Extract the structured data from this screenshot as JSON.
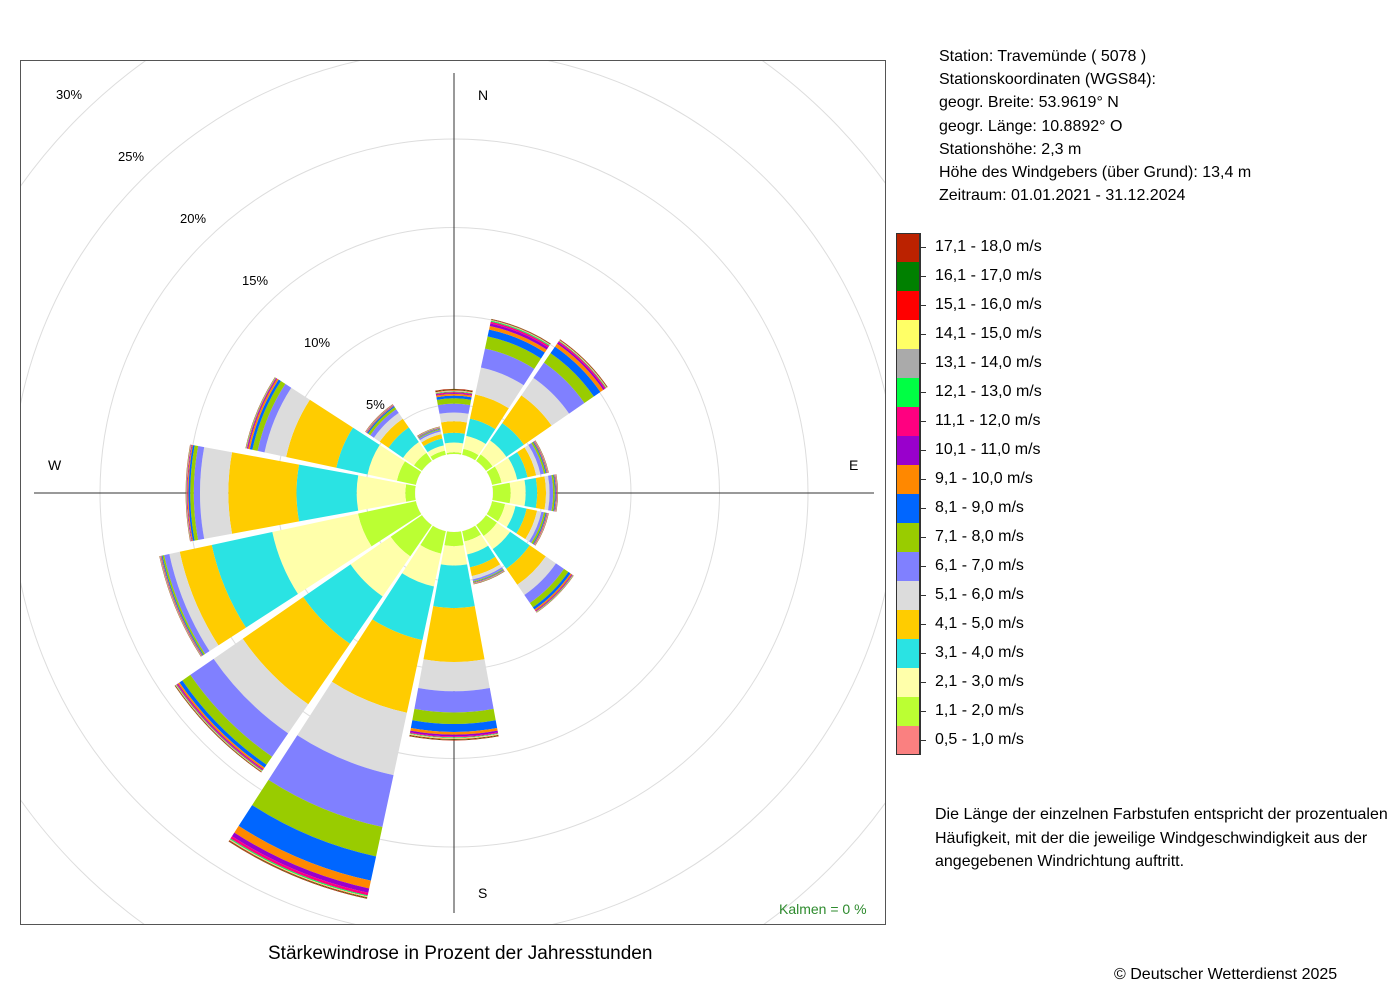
{
  "chart_data": {
    "type": "wind-rose",
    "title": "Stärkewindrose in Prozent der Jahresstunden",
    "directions": [
      "N",
      "NNE",
      "NE",
      "ENE",
      "E",
      "ESE",
      "SE",
      "SSE",
      "S",
      "SSW",
      "SW",
      "WSW",
      "W",
      "WNW",
      "NW",
      "NNW"
    ],
    "direction_labels": [
      "N",
      "E",
      "S",
      "W"
    ],
    "ring_labels": [
      "5%",
      "10%",
      "15%",
      "20%",
      "25%",
      "30%"
    ],
    "ring_values": [
      5,
      10,
      15,
      20,
      25,
      30
    ],
    "rlim": [
      0,
      30
    ],
    "calm_label": "Kalmen  =  0 %",
    "speed_classes": [
      {
        "label": "0,5 - 1,0 m/s",
        "color": "#fa8080"
      },
      {
        "label": "1,1 - 2,0 m/s",
        "color": "#bbff33"
      },
      {
        "label": "2,1 - 3,0 m/s",
        "color": "#ffffaa"
      },
      {
        "label": "3,1 - 4,0 m/s",
        "color": "#2ae3e3"
      },
      {
        "label": "4,1 - 5,0 m/s",
        "color": "#ffcc00"
      },
      {
        "label": "5,1 - 6,0 m/s",
        "color": "#dcdcdc"
      },
      {
        "label": "6,1 - 7,0 m/s",
        "color": "#8080ff"
      },
      {
        "label": "7,1 - 8,0 m/s",
        "color": "#99cc00"
      },
      {
        "label": "8,1 - 9,0 m/s",
        "color": "#0066ff"
      },
      {
        "label": "9,1 - 10,0 m/s",
        "color": "#ff8800"
      },
      {
        "label": "10,1 - 11,0 m/s",
        "color": "#9900cc"
      },
      {
        "label": "11,1 - 12,0 m/s",
        "color": "#ff0080"
      },
      {
        "label": "12,1 - 13,0 m/s",
        "color": "#00ff44"
      },
      {
        "label": "13,1 - 14,0 m/s",
        "color": "#aaaaaa"
      },
      {
        "label": "14,1 - 15,0 m/s",
        "color": "#ffff66"
      },
      {
        "label": "15,1 - 16,0 m/s",
        "color": "#ff0000"
      },
      {
        "label": "16,1 - 17,0 m/s",
        "color": "#008000"
      },
      {
        "label": "17,1 - 18,0 m/s",
        "color": "#bb2200"
      }
    ],
    "cumulative_percent": {
      "N": [
        2.2,
        2.3,
        2.85,
        3.4,
        4.05,
        4.55,
        5.05,
        5.35,
        5.5,
        5.6,
        5.65,
        5.7,
        5.73,
        5.76,
        5.79,
        5.82,
        5.85,
        5.88
      ],
      "NNE": [
        2.2,
        2.55,
        3.3,
        4.3,
        5.7,
        7.25,
        8.35,
        9.05,
        9.45,
        9.65,
        9.8,
        9.9,
        9.95,
        9.98,
        10.0,
        10.02,
        10.04,
        10.06
      ],
      "NE": [
        2.2,
        2.65,
        3.6,
        4.8,
        6.7,
        7.9,
        8.95,
        9.6,
        10.05,
        10.25,
        10.35,
        10.42,
        10.45,
        10.47,
        10.49,
        10.51,
        10.53,
        10.55
      ],
      "ENE": [
        2.2,
        2.75,
        3.65,
        4.25,
        4.75,
        5.0,
        5.2,
        5.3,
        5.35,
        5.38,
        5.4,
        5.42,
        5.43,
        5.44,
        5.45,
        5.46,
        5.47,
        5.48
      ],
      "E": [
        2.2,
        3.2,
        4.05,
        4.7,
        5.2,
        5.4,
        5.6,
        5.7,
        5.75,
        5.78,
        5.8,
        5.82,
        5.83,
        5.84,
        5.85,
        5.86,
        5.87,
        5.88
      ],
      "ESE": [
        2.2,
        2.95,
        3.55,
        4.2,
        4.8,
        5.05,
        5.2,
        5.3,
        5.35,
        5.38,
        5.4,
        5.42,
        5.43,
        5.44,
        5.45,
        5.46,
        5.47,
        5.48
      ],
      "SE": [
        2.2,
        2.95,
        3.85,
        5.2,
        6.3,
        7.0,
        7.55,
        7.85,
        8.0,
        8.08,
        8.12,
        8.15,
        8.17,
        8.18,
        8.19,
        8.2,
        8.21,
        8.22
      ],
      "SSE": [
        2.2,
        2.8,
        3.55,
        4.3,
        4.8,
        5.0,
        5.1,
        5.15,
        5.18,
        5.2,
        5.21,
        5.22,
        5.23,
        5.24,
        5.25,
        5.26,
        5.27,
        5.28
      ],
      "S": [
        2.2,
        3.0,
        4.1,
        6.5,
        9.55,
        11.2,
        12.4,
        13.05,
        13.5,
        13.65,
        13.75,
        13.8,
        13.83,
        13.86,
        13.89,
        13.92,
        13.95,
        13.98
      ],
      "SSW": [
        2.2,
        3.5,
        5.4,
        8.5,
        12.7,
        16.3,
        19.3,
        21.0,
        22.4,
        22.85,
        23.1,
        23.25,
        23.3,
        23.33,
        23.36,
        23.39,
        23.42,
        23.45
      ],
      "SW": [
        2.2,
        4.35,
        7.1,
        10.35,
        14.5,
        16.5,
        18.1,
        18.65,
        18.85,
        18.95,
        19.0,
        19.05,
        19.08,
        19.1,
        19.12,
        19.14,
        19.16,
        19.18
      ],
      "WSW": [
        2.2,
        5.55,
        10.5,
        14.0,
        15.85,
        16.45,
        16.75,
        16.85,
        16.9,
        16.93,
        16.95,
        16.97,
        16.98,
        16.99,
        17.0,
        17.01,
        17.02,
        17.03
      ],
      "W": [
        2.2,
        2.75,
        5.5,
        8.9,
        12.75,
        14.35,
        14.7,
        14.9,
        15.0,
        15.05,
        15.08,
        15.1,
        15.11,
        15.12,
        15.13,
        15.14,
        15.15,
        15.16
      ],
      "WNW": [
        2.2,
        3.3,
        5.0,
        6.8,
        9.7,
        10.95,
        11.35,
        11.65,
        11.8,
        11.9,
        11.95,
        11.98,
        12.0,
        12.01,
        12.02,
        12.03,
        12.04,
        12.05
      ],
      "NW": [
        2.2,
        2.75,
        3.5,
        4.5,
        5.1,
        5.5,
        5.75,
        5.9,
        5.97,
        6.0,
        6.02,
        6.04,
        6.05,
        6.06,
        6.07,
        6.08,
        6.09,
        6.1
      ],
      "NNW": [
        2.2,
        2.45,
        2.75,
        3.15,
        3.4,
        3.55,
        3.65,
        3.7,
        3.73,
        3.75,
        3.77,
        3.78,
        3.79,
        3.8,
        3.81,
        3.82,
        3.83,
        3.84
      ]
    }
  },
  "station": {
    "lines": [
      "Station:  Travemünde  ( 5078 )",
      "Stationskoordinaten (WGS84):",
      "geogr. Breite: 53.9619° N",
      "geogr. Länge: 10.8892° O",
      "Stationshöhe: 2,3 m",
      "Höhe des Windgebers (über Grund): 13,4 m",
      "Zeitraum: 01.01.2021 - 31.12.2024"
    ]
  },
  "note": "Die Länge der einzelnen Farbstufen entspricht der prozentualen Häufigkeit, mit der die jeweilige Windgeschwindigkeit aus der angegebenen Windrichtung auftritt.",
  "caption": "Stärkewindrose in Prozent der Jahresstunden",
  "copyright": "© Deutscher Wetterdienst  2025"
}
